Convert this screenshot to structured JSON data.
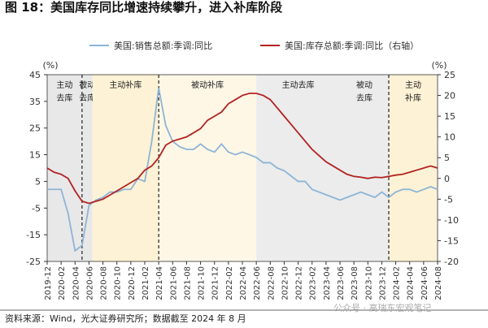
{
  "chart_data": {
    "type": "line",
    "title": "图 18：美国库存同比增速持续攀升，进入补库阶段",
    "source": "资料来源：Wind，光大证券研究所；数据截至 2024 年 8 月",
    "watermark": "公众号 · 高瑞东宏观笔记",
    "ylabel": "(%)",
    "y2label": "(%)",
    "ylim": [
      -25,
      45
    ],
    "yticks": [
      -25,
      -15,
      -5,
      5,
      15,
      25,
      35,
      45
    ],
    "y2lim": [
      -20,
      25
    ],
    "y2ticks": [
      -20,
      -15,
      -10,
      -5,
      0,
      5,
      10,
      15,
      20,
      25
    ],
    "phases": [
      {
        "label": [
          "主动",
          "去库"
        ],
        "shade": "#e8e8e8"
      },
      {
        "label": [
          "被动",
          "去库"
        ],
        "shade": "#e8e8e8"
      },
      {
        "label": [
          "主动补库"
        ],
        "shade": "#fdf2d5"
      },
      {
        "label": [
          "被动补库"
        ],
        "shade": "#fef7e6"
      },
      {
        "label": [
          "主动去库"
        ],
        "shade": "#ececec"
      },
      {
        "label": [
          "被动",
          "去库"
        ],
        "shade": "#ececec"
      },
      {
        "label": [
          "主动",
          "补库"
        ],
        "shade": "#fdf2d5"
      }
    ],
    "categories": [
      "2019-12",
      null,
      "2020-02",
      null,
      "2020-04",
      null,
      "2020-06",
      null,
      "2020-08",
      null,
      "2020-10",
      null,
      "2020-12",
      null,
      "2021-02",
      null,
      "2021-04",
      null,
      "2021-06",
      null,
      "2021-08",
      null,
      "2021-10",
      null,
      "2021-12",
      null,
      "2022-02",
      null,
      "2022-04",
      null,
      "2022-06",
      null,
      "2022-08",
      null,
      "2022-10",
      null,
      "2022-12",
      null,
      "2023-02",
      null,
      "2023-04",
      null,
      "2023-06",
      null,
      "2023-08",
      null,
      "2023-10",
      null,
      "2023-12",
      null,
      "2024-02",
      null,
      "2024-04",
      null,
      "2024-06",
      null,
      "2024-08"
    ],
    "series": [
      {
        "name": "美国:销售总额:季调:同比",
        "color": "#8db4d6",
        "values": [
          2,
          2,
          2,
          -7,
          -21,
          -19,
          -4,
          -2,
          -1,
          1,
          1,
          2,
          2,
          6,
          5,
          20,
          40,
          26,
          20,
          18,
          17,
          17,
          19,
          17,
          16,
          19,
          16,
          15,
          16,
          15,
          14,
          12,
          12,
          10,
          9,
          7,
          5,
          5,
          2,
          1,
          0,
          -1,
          -2,
          -1,
          0,
          1,
          0,
          -1,
          1,
          -1,
          1,
          2,
          2,
          1,
          2,
          3,
          2
        ]
      },
      {
        "name": "美国:库存总额:季调:同比（右轴）",
        "color": "#b22222",
        "axis": "y2",
        "values": [
          2.5,
          1.5,
          1,
          0,
          -3,
          -5.5,
          -6,
          -5.5,
          -5,
          -4,
          -3,
          -2,
          -1,
          0,
          2,
          3,
          5,
          8,
          9,
          9.5,
          10,
          11,
          12,
          14,
          15,
          16,
          18,
          19,
          20,
          20.5,
          20.5,
          20,
          19,
          17,
          15,
          13,
          11,
          9,
          7,
          5.5,
          4,
          3,
          2,
          1,
          0.5,
          0.3,
          0,
          0.3,
          0.2,
          0.5,
          0.8,
          1,
          1.5,
          2,
          2.5,
          3,
          2.5
        ]
      }
    ]
  }
}
